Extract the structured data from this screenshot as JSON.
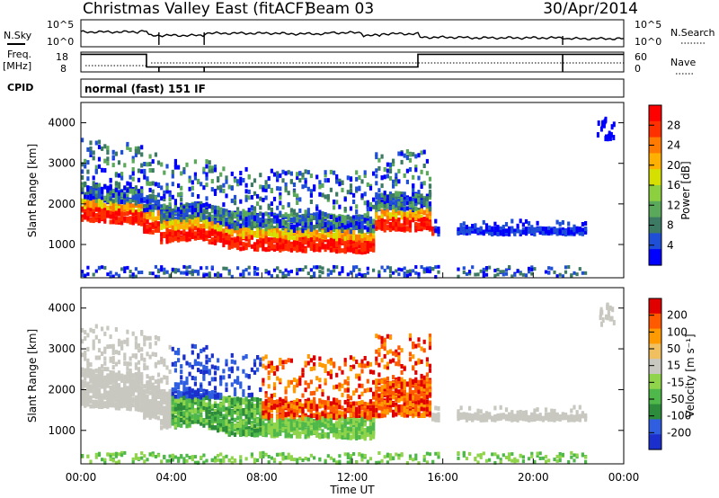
{
  "header": {
    "title": "Christmas Valley East (fitACF)",
    "beam": "Beam 03",
    "date": "30/Apr/2014"
  },
  "panels": {
    "sky_label": "N.Sky",
    "sky_ticks": [
      "10^5",
      "10^0"
    ],
    "search_label": "N.Search",
    "search_ticks": [
      "10^5",
      "10^0"
    ],
    "freq_label_1": "Freq.",
    "freq_label_2": "[MHz]",
    "freq_ticks": [
      "18",
      "8"
    ],
    "nave_label": "Nave",
    "nave_ticks": [
      "60",
      "0"
    ],
    "cpid_label": "CPID",
    "cpid_value": "normal (fast) 151 IF"
  },
  "chart_data": [
    {
      "type": "heatmap",
      "name": "power",
      "ylabel": "Slant Range [km]",
      "yticks": [
        "4000",
        "3000",
        "2000",
        "1000"
      ],
      "colorbar_label": "Power [dB]",
      "colorbar_ticks": [
        "28",
        "24",
        "20",
        "16",
        "12",
        "8",
        "4"
      ],
      "colors": [
        "#0000ff",
        "#1f4fd6",
        "#3d7a63",
        "#5aa85a",
        "#8ccf3f",
        "#d6e000",
        "#ffb000",
        "#ff7a00",
        "#ff3000",
        "#ff0000"
      ],
      "ylim": [
        180,
        4500
      ],
      "xlim": [
        0,
        24
      ]
    },
    {
      "type": "heatmap",
      "name": "velocity",
      "ylabel": "Slant Range [km]",
      "yticks": [
        "4000",
        "3000",
        "2000",
        "1000"
      ],
      "colorbar_label": "Velocity [m s⁻¹]",
      "colorbar_ticks": [
        "200",
        "100",
        "50",
        "15",
        "-15",
        "-50",
        "-100",
        "-200"
      ],
      "colors": [
        "#1a2fcc",
        "#2f5fe0",
        "#2c8c3c",
        "#4fb84a",
        "#8fd44a",
        "#c8c8c0",
        "#f0c060",
        "#ff9a00",
        "#ff5a00",
        "#e00000"
      ],
      "ylim": [
        180,
        4500
      ],
      "xlim": [
        0,
        24
      ]
    }
  ],
  "xaxis": {
    "label": "Time UT",
    "ticks": [
      "00:00",
      "04:00",
      "08:00",
      "12:00",
      "16:00",
      "20:00",
      "00:00"
    ]
  }
}
